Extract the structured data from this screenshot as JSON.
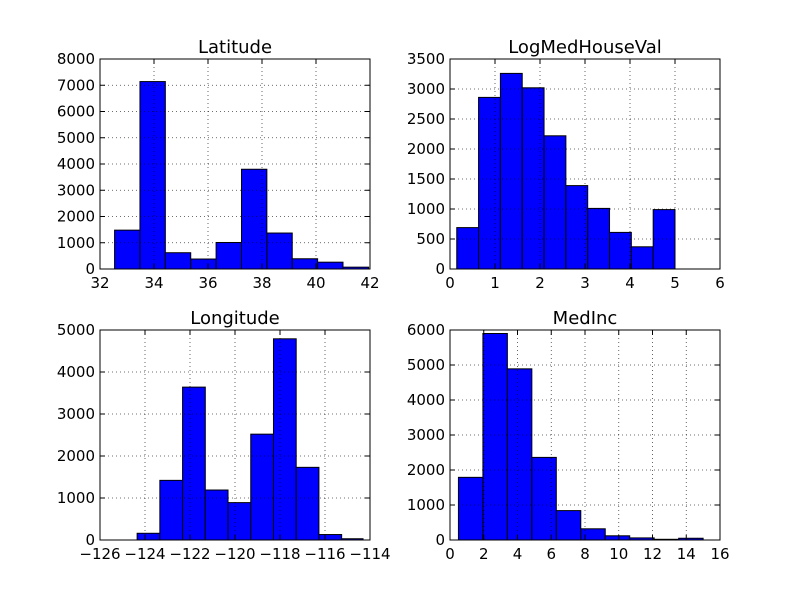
{
  "figure": {
    "background": "#ffffff",
    "bar_color": "#0000ff",
    "edge_color": "#000000"
  },
  "chart_data": [
    {
      "type": "bar",
      "title": "Latitude",
      "xlim": [
        32,
        42
      ],
      "ylim": [
        0,
        8000
      ],
      "xticks": [
        32,
        34,
        36,
        38,
        40,
        42
      ],
      "xtick_labels": [
        "32",
        "34",
        "36",
        "38",
        "40",
        "42"
      ],
      "yticks": [
        0,
        1000,
        2000,
        3000,
        4000,
        5000,
        6000,
        7000,
        8000
      ],
      "ytick_labels": [
        "0",
        "1000",
        "2000",
        "3000",
        "4000",
        "5000",
        "6000",
        "7000",
        "8000"
      ],
      "grid": true,
      "bin_edges": [
        32.54,
        33.48,
        34.42,
        35.36,
        36.3,
        37.24,
        38.18,
        39.12,
        40.06,
        41.0,
        41.95
      ],
      "values": [
        1480,
        7140,
        620,
        380,
        1010,
        3800,
        1370,
        390,
        260,
        70
      ]
    },
    {
      "type": "bar",
      "title": "LogMedHouseVal",
      "xlim": [
        0,
        6
      ],
      "ylim": [
        0,
        3500
      ],
      "xticks": [
        0,
        1,
        2,
        3,
        4,
        5,
        6
      ],
      "xtick_labels": [
        "0",
        "1",
        "2",
        "3",
        "4",
        "5",
        "6"
      ],
      "yticks": [
        0,
        500,
        1000,
        1500,
        2000,
        2500,
        3000,
        3500
      ],
      "ytick_labels": [
        "0",
        "500",
        "1000",
        "1500",
        "2000",
        "2500",
        "3000",
        "3500"
      ],
      "grid": true,
      "bin_edges": [
        0.15,
        0.635,
        1.12,
        1.605,
        2.09,
        2.575,
        3.06,
        3.545,
        4.03,
        4.515,
        5.0
      ],
      "values": [
        690,
        2860,
        3260,
        3020,
        2220,
        1390,
        1010,
        610,
        370,
        990
      ]
    },
    {
      "type": "bar",
      "title": "Longitude",
      "xlim": [
        -126,
        -114
      ],
      "ylim": [
        0,
        5000
      ],
      "xticks": [
        -126,
        -124,
        -122,
        -120,
        -118,
        -116,
        -114
      ],
      "xtick_labels": [
        "−126",
        "−124",
        "−122",
        "−120",
        "−118",
        "−116",
        "−114"
      ],
      "yticks": [
        0,
        1000,
        2000,
        3000,
        4000,
        5000
      ],
      "ytick_labels": [
        "0",
        "1000",
        "2000",
        "3000",
        "4000",
        "5000"
      ],
      "grid": true,
      "bin_edges": [
        -124.35,
        -123.34,
        -122.33,
        -121.32,
        -120.31,
        -119.3,
        -118.29,
        -117.28,
        -116.27,
        -115.26,
        -114.31
      ],
      "values": [
        160,
        1420,
        3640,
        1190,
        890,
        2520,
        4790,
        1730,
        130,
        30
      ]
    },
    {
      "type": "bar",
      "title": "MedInc",
      "xlim": [
        0,
        16
      ],
      "ylim": [
        0,
        6000
      ],
      "xticks": [
        0,
        2,
        4,
        6,
        8,
        10,
        12,
        14,
        16
      ],
      "xtick_labels": [
        "0",
        "2",
        "4",
        "6",
        "8",
        "10",
        "12",
        "14",
        "16"
      ],
      "yticks": [
        0,
        1000,
        2000,
        3000,
        4000,
        5000,
        6000
      ],
      "ytick_labels": [
        "0",
        "1000",
        "2000",
        "3000",
        "4000",
        "5000",
        "6000"
      ],
      "grid": true,
      "bin_edges": [
        0.5,
        1.95,
        3.4,
        4.85,
        6.3,
        7.75,
        9.2,
        10.65,
        12.1,
        13.55,
        15.0
      ],
      "values": [
        1790,
        5900,
        4890,
        2360,
        840,
        320,
        120,
        60,
        20,
        50
      ]
    }
  ]
}
